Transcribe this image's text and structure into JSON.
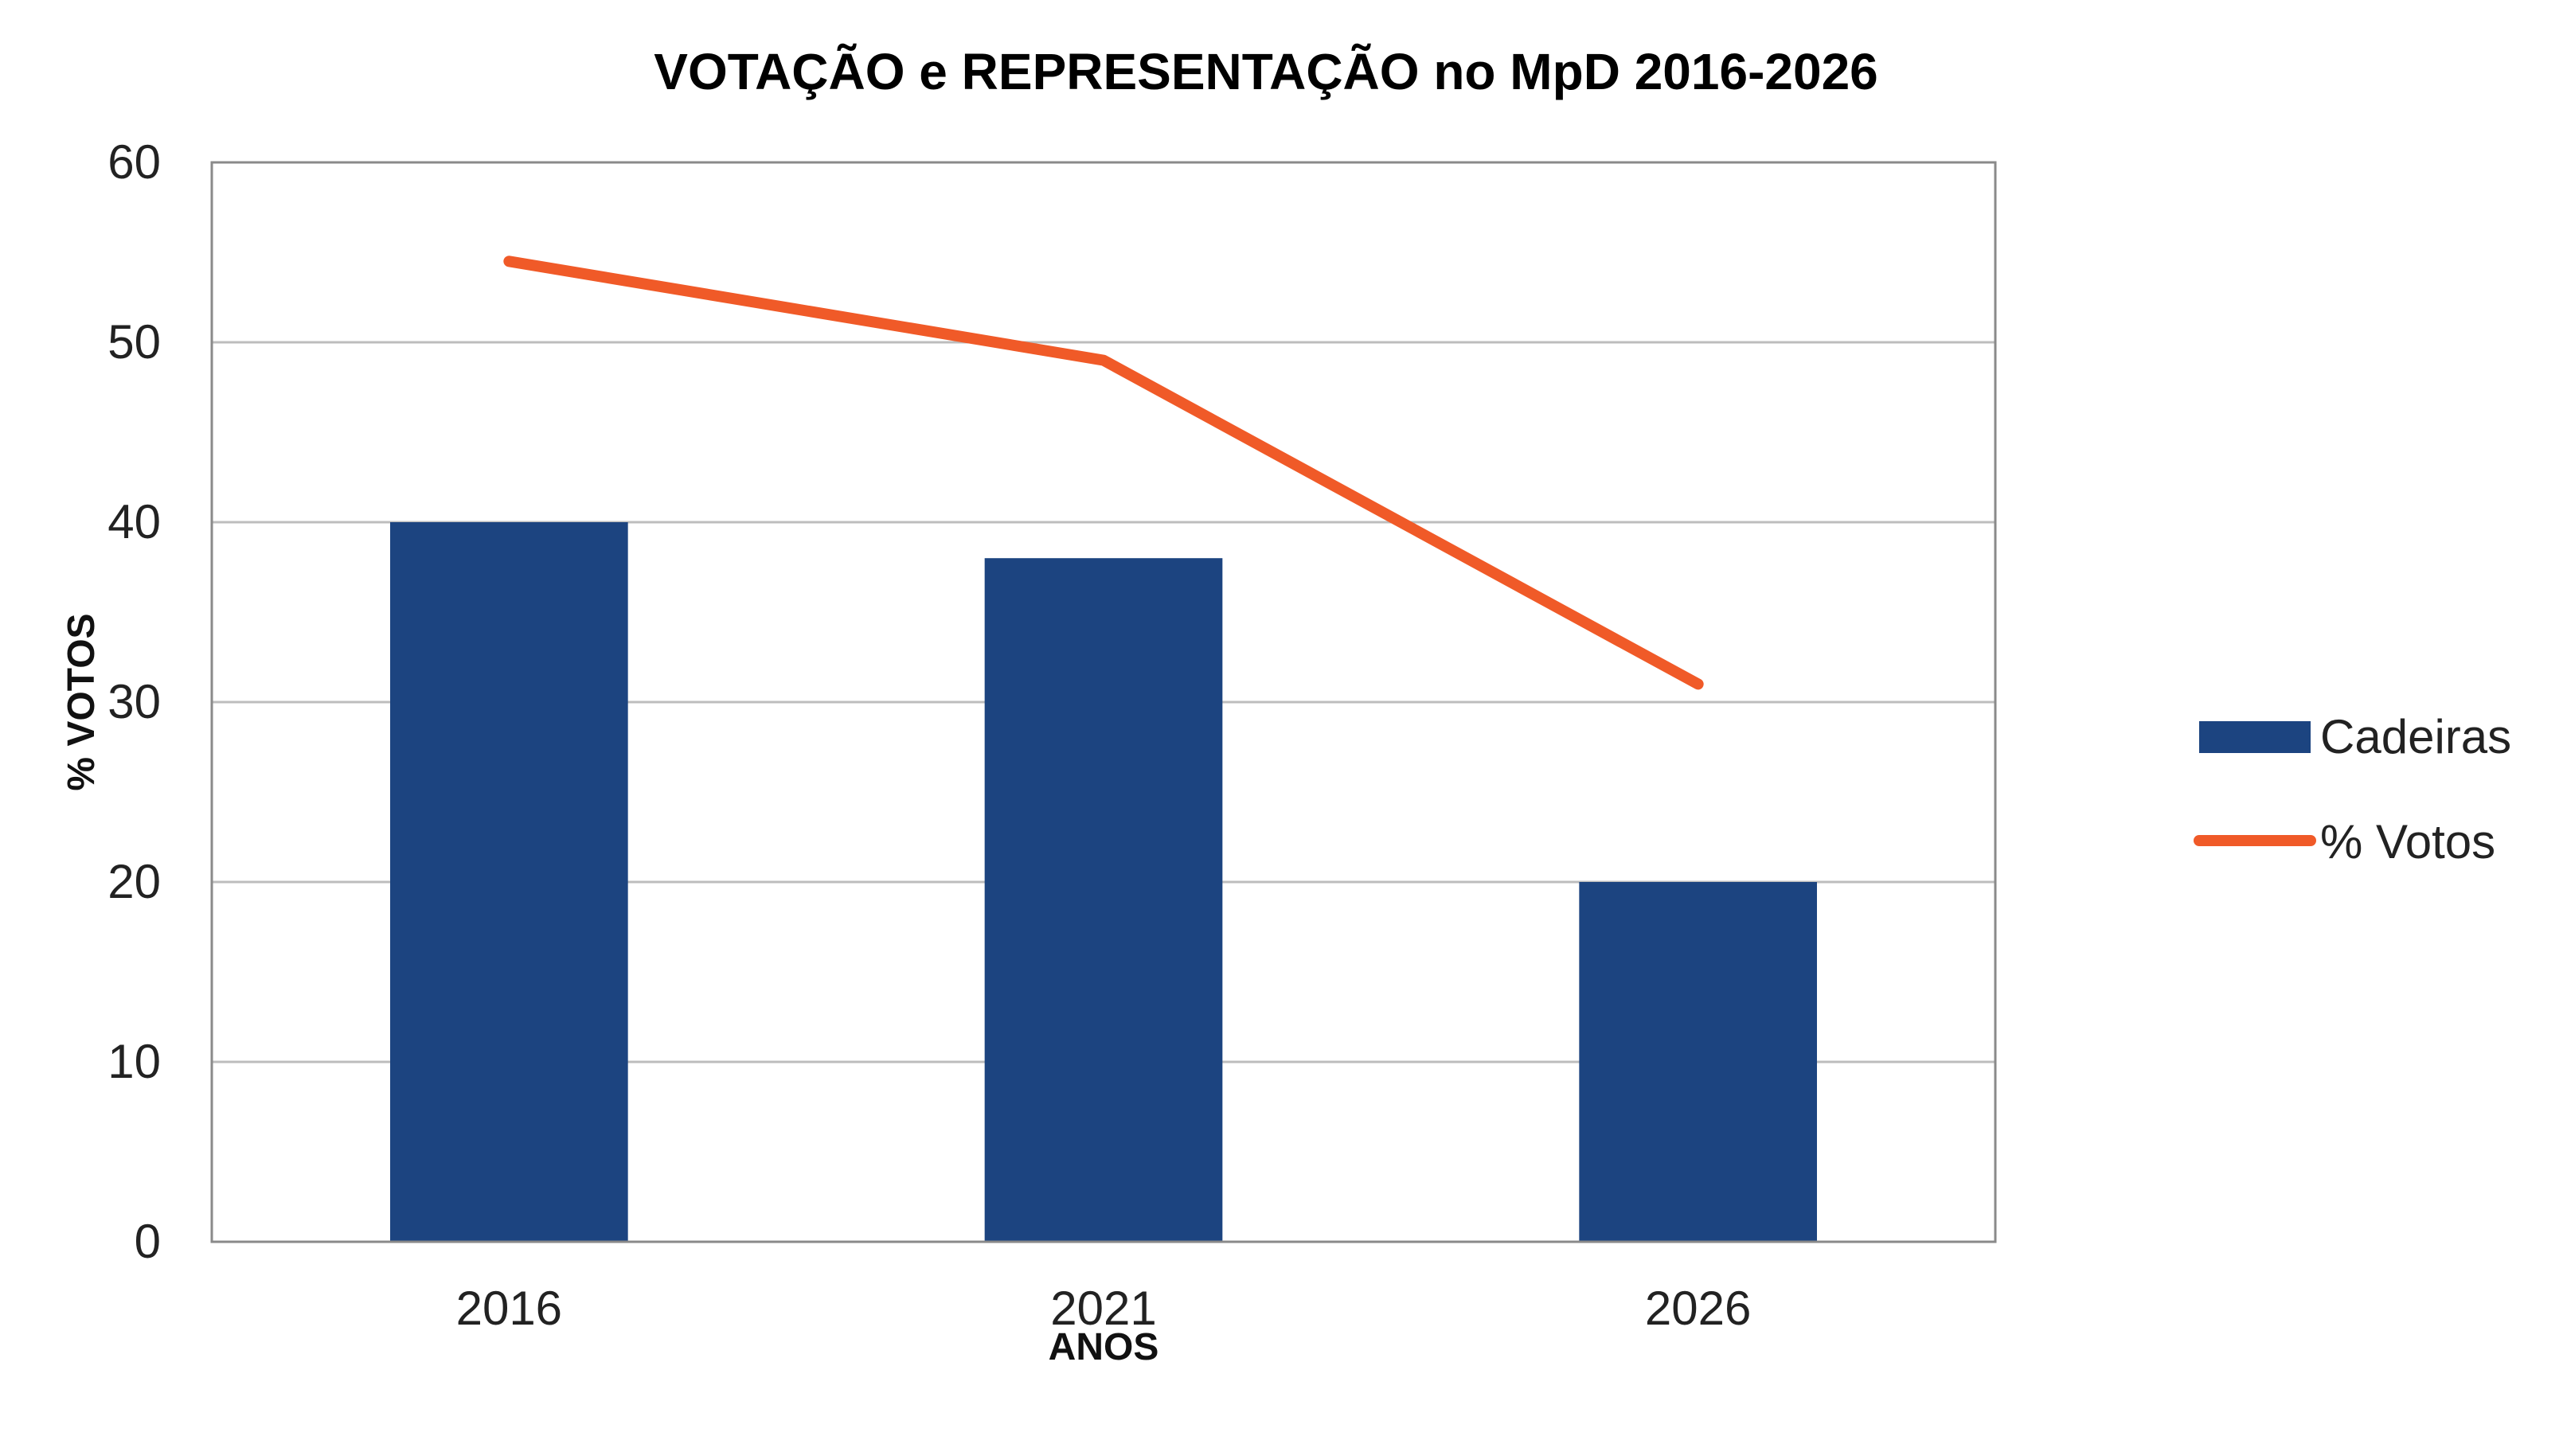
{
  "chart_data": {
    "type": "bar+line",
    "title": "VOTAÇÃO e REPRESENTAÇÃO no MpD 2016-2026",
    "xlabel": "ANOS",
    "ylabel": "% VOTOS",
    "categories": [
      "2016",
      "2021",
      "2026"
    ],
    "ylim": [
      0,
      60
    ],
    "yticks": [
      0,
      10,
      20,
      30,
      40,
      50,
      60
    ],
    "grid": true,
    "legend_position": "right",
    "series": [
      {
        "name": "Cadeiras",
        "kind": "bar",
        "color": "#1c4480",
        "values": [
          40,
          38,
          20
        ]
      },
      {
        "name": "% Votos",
        "kind": "line",
        "color": "#f05a28",
        "values": [
          54.5,
          49,
          31
        ]
      }
    ]
  }
}
